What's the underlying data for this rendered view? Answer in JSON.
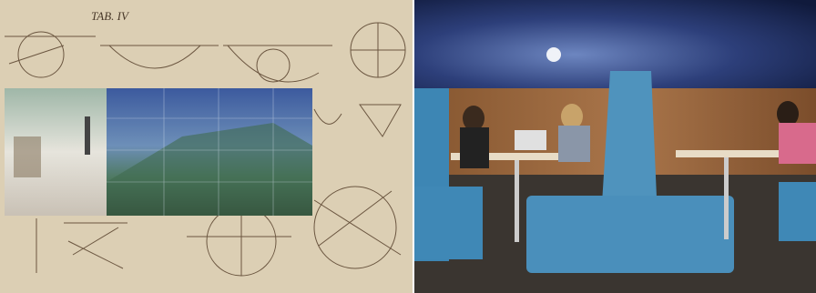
{
  "manuscript": {
    "title": "TAB. IV"
  }
}
